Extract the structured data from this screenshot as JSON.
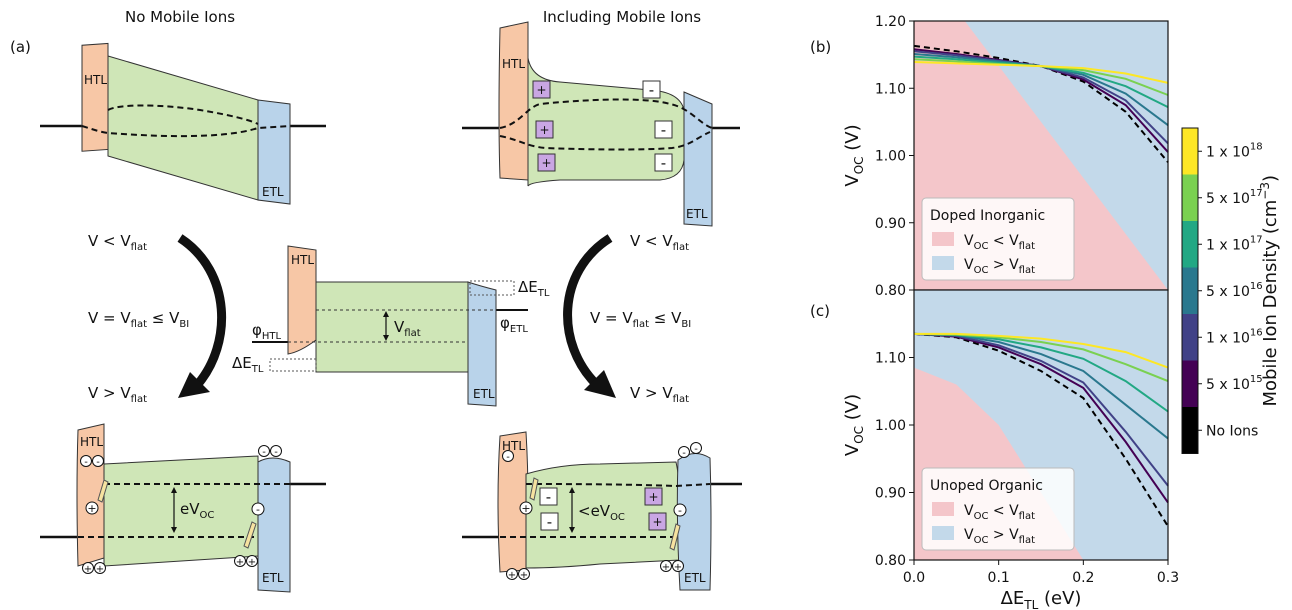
{
  "figure": {
    "panel_a": "(a)",
    "panel_b": "(b)",
    "panel_c": "(c)",
    "title_left": "No Mobile Ions",
    "title_right": "Including Mobile Ions",
    "htl": "HTL",
    "etl": "ETL",
    "v_less_pre": "V < V",
    "v_greater_pre": "V > V",
    "v_equal_pre": "V = V",
    "v_equal_mid": " ≤ V",
    "sub_flat": "flat",
    "sub_bi": "BI",
    "sub_htl": "HTL",
    "sub_etl": "ETL",
    "sub_tl": "TL",
    "sub_oc": "OC",
    "phi": "φ",
    "delta_e": "ΔE",
    "v_flat_label_pre": "V",
    "evoc_pre": "eV",
    "lt_evoc_pre": "<eV",
    "plus": "+",
    "minus": "-",
    "hole": "+",
    "electron": "-"
  },
  "colors": {
    "htl": "#f7c7a6",
    "etl": "#b9d3ea",
    "absorber": "#cfe6b7",
    "ion_plus": "#c9a6e3",
    "region_lt": "#f4c6ca",
    "region_gt": "#c3d9ea",
    "cmap": [
      "#000000",
      "#440154",
      "#414287",
      "#2a788e",
      "#22a884",
      "#7ad151",
      "#fde725"
    ]
  },
  "chart_data": [
    {
      "type": "line",
      "panel": "(b)",
      "xlabel": "ΔE",
      "xlabel_sub": "TL",
      "xlabel_unit": " (eV)",
      "ylabel": "V",
      "ylabel_sub": "OC",
      "ylabel_unit": " (V)",
      "xlim": [
        0,
        0.3
      ],
      "ylim": [
        0.8,
        1.2
      ],
      "yticks": [
        "0.80",
        "0.90",
        "1.00",
        "1.10",
        "1.20"
      ],
      "legend_title": "Doped Inorganic",
      "legend_items": [
        {
          "pre": "V",
          "sub": "OC",
          "mid": " < V",
          "sub2": "flat",
          "color": "region_lt"
        },
        {
          "pre": "V",
          "sub": "OC",
          "mid": " > V",
          "sub2": "flat",
          "color": "region_gt"
        }
      ],
      "boundary": [
        [
          0.06,
          1.2
        ],
        [
          0.3,
          0.8
        ]
      ],
      "x": [
        0,
        0.05,
        0.1,
        0.15,
        0.2,
        0.25,
        0.3
      ],
      "series": [
        {
          "cmap_index": 0,
          "dashed": true,
          "values": [
            1.163,
            1.155,
            1.145,
            1.133,
            1.11,
            1.065,
            0.99
          ]
        },
        {
          "cmap_index": 1,
          "values": [
            1.158,
            1.151,
            1.142,
            1.133,
            1.113,
            1.075,
            1.005
          ]
        },
        {
          "cmap_index": 2,
          "values": [
            1.155,
            1.149,
            1.141,
            1.133,
            1.116,
            1.082,
            1.018
          ]
        },
        {
          "cmap_index": 3,
          "values": [
            1.151,
            1.146,
            1.14,
            1.133,
            1.12,
            1.092,
            1.045
          ]
        },
        {
          "cmap_index": 4,
          "values": [
            1.147,
            1.143,
            1.138,
            1.133,
            1.123,
            1.103,
            1.072
          ]
        },
        {
          "cmap_index": 5,
          "values": [
            1.143,
            1.14,
            1.136,
            1.133,
            1.127,
            1.114,
            1.09
          ]
        },
        {
          "cmap_index": 6,
          "values": [
            1.139,
            1.137,
            1.135,
            1.133,
            1.13,
            1.122,
            1.108
          ]
        }
      ]
    },
    {
      "type": "line",
      "panel": "(c)",
      "xlabel": "ΔE",
      "xlabel_sub": "TL",
      "xlabel_unit": " (eV)",
      "ylabel": "V",
      "ylabel_sub": "OC",
      "ylabel_unit": " (V)",
      "xlim": [
        0,
        0.3
      ],
      "ylim": [
        0.8,
        1.2
      ],
      "yticks": [
        "0.80",
        "0.90",
        "1.00",
        "1.10"
      ],
      "xticks": [
        "0.0",
        "0.1",
        "0.2",
        "0.3"
      ],
      "legend_title": "Unoped Organic",
      "legend_items": [
        {
          "pre": "V",
          "sub": "OC",
          "mid": " < V",
          "sub2": "flat",
          "color": "region_lt"
        },
        {
          "pre": "V",
          "sub": "OC",
          "mid": " > V",
          "sub2": "flat",
          "color": "region_gt"
        }
      ],
      "boundary": [
        [
          0.0,
          1.085
        ],
        [
          0.05,
          1.06
        ],
        [
          0.1,
          1.0
        ],
        [
          0.15,
          0.9
        ],
        [
          0.2,
          0.8
        ]
      ],
      "x": [
        0,
        0.05,
        0.1,
        0.15,
        0.2,
        0.25,
        0.3
      ],
      "series": [
        {
          "cmap_index": 0,
          "dashed": true,
          "values": [
            1.135,
            1.13,
            1.11,
            1.08,
            1.04,
            0.95,
            0.85
          ]
        },
        {
          "cmap_index": 1,
          "values": [
            1.135,
            1.131,
            1.115,
            1.09,
            1.055,
            0.975,
            0.885
          ]
        },
        {
          "cmap_index": 2,
          "values": [
            1.135,
            1.132,
            1.118,
            1.095,
            1.063,
            0.99,
            0.91
          ]
        },
        {
          "cmap_index": 3,
          "values": [
            1.135,
            1.133,
            1.123,
            1.105,
            1.08,
            1.03,
            0.98
          ]
        },
        {
          "cmap_index": 4,
          "values": [
            1.135,
            1.134,
            1.127,
            1.115,
            1.098,
            1.065,
            1.02
          ]
        },
        {
          "cmap_index": 5,
          "values": [
            1.135,
            1.134,
            1.13,
            1.123,
            1.112,
            1.09,
            1.065
          ]
        },
        {
          "cmap_index": 6,
          "values": [
            1.135,
            1.135,
            1.132,
            1.128,
            1.12,
            1.108,
            1.085
          ]
        }
      ]
    }
  ],
  "colorbar": {
    "label_pre": "Mobile Ion Density (cm",
    "label_sup": "−3",
    "label_post": ")",
    "entries": [
      {
        "base": "1 x 10",
        "exp": "18"
      },
      {
        "base": "5 x 10",
        "exp": "17"
      },
      {
        "base": "1 x 10",
        "exp": "17"
      },
      {
        "base": "5 x 10",
        "exp": "16"
      },
      {
        "base": "1 x 10",
        "exp": "16"
      },
      {
        "base": "5 x 10",
        "exp": "15"
      },
      {
        "base": "No Ions",
        "exp": ""
      }
    ]
  }
}
